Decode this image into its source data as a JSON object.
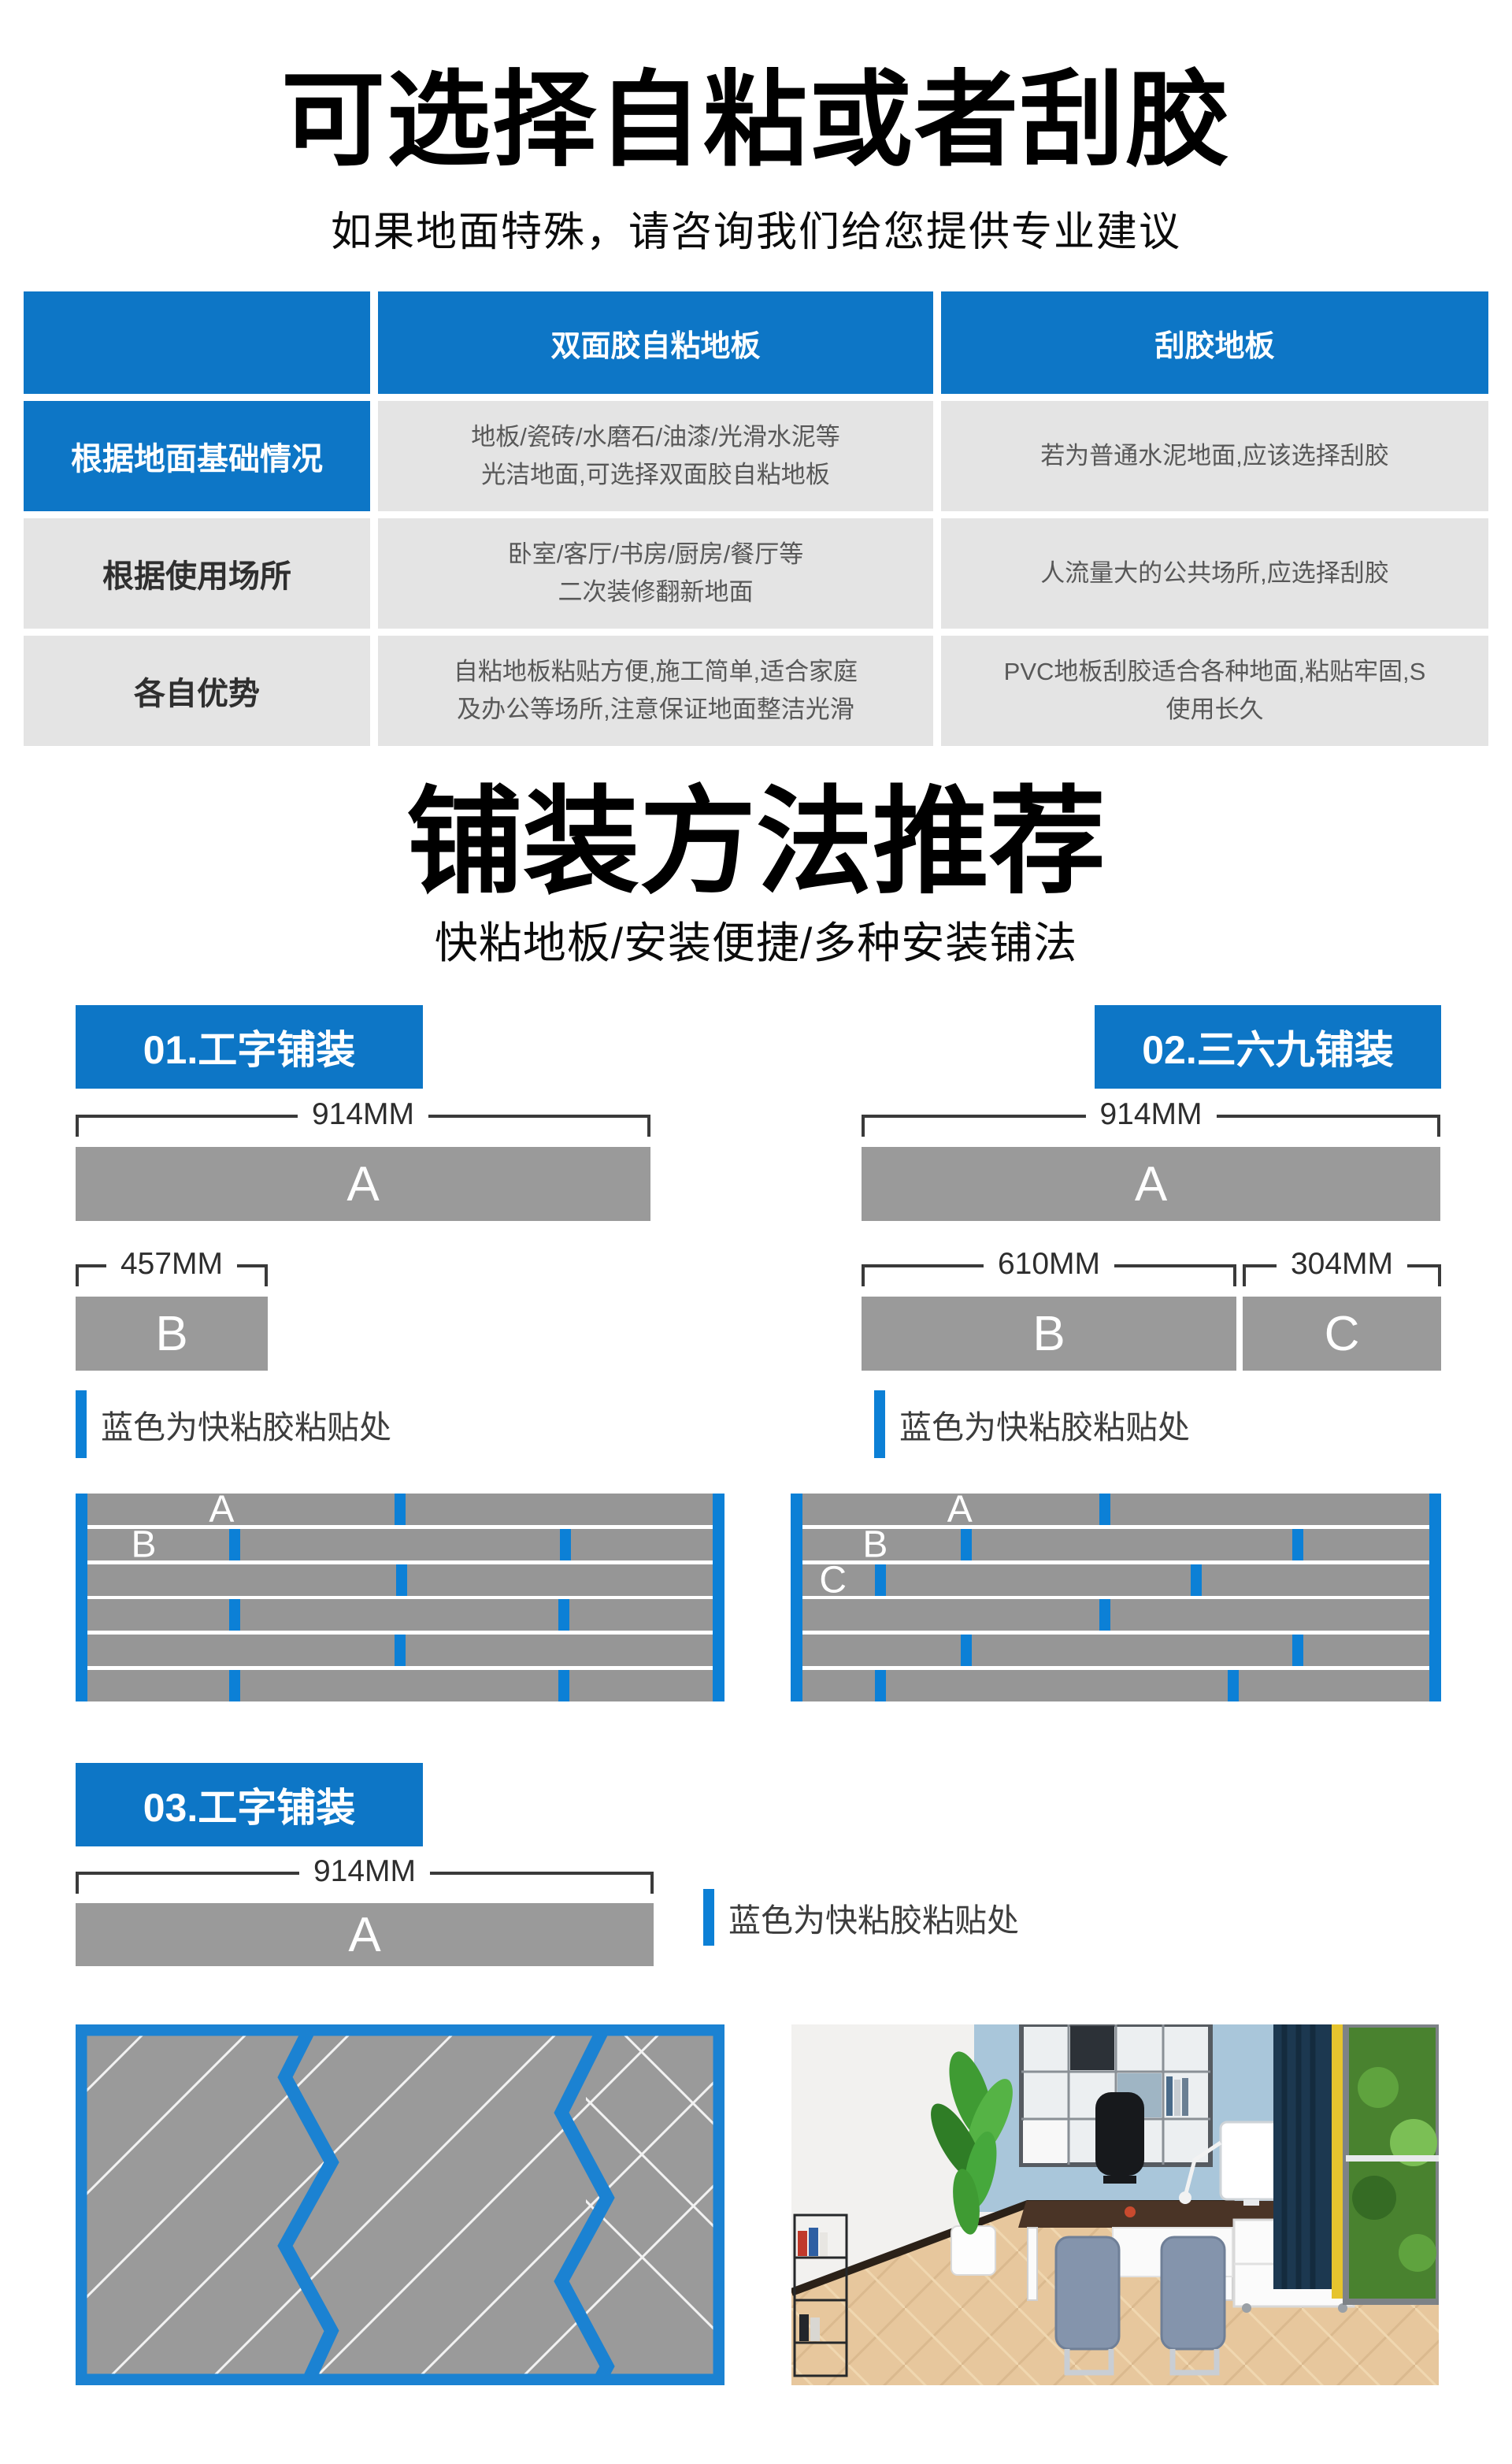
{
  "header": {
    "title": "可选择自粘或者刮胶",
    "subtitle": "如果地面特殊，请咨询我们给您提供专业建议"
  },
  "comparison_table": {
    "col_headers": [
      "双面胶自粘地板",
      "刮胶地板"
    ],
    "rows": [
      {
        "label": "根据地面基础情况",
        "self_adhesive": "地板/瓷砖/水磨石/油漆/光滑水泥等\n光洁地面,可选择双面胶自粘地板",
        "glue": "若为普通水泥地面,应该选择刮胶"
      },
      {
        "label": "根据使用场所",
        "self_adhesive": "卧室/客厅/书房/厨房/餐厅等\n二次装修翻新地面",
        "glue": "人流量大的公共场所,应选择刮胶"
      },
      {
        "label": "各自优势",
        "self_adhesive": "自粘地板粘贴方便,施工简单,适合家庭\n及办公等场所,注意保证地面整洁光滑",
        "glue": "PVC地板刮胶适合各种地面,粘贴牢固,S\n使用长久"
      }
    ]
  },
  "methods": {
    "title": "铺装方法推荐",
    "subtitle": "快粘地板/安装便捷/多种安装铺法",
    "legend_text": "蓝色为快粘胶粘贴处",
    "badges": [
      {
        "label": "01.工字铺装"
      },
      {
        "label": "02.三六九铺装"
      },
      {
        "label": "03.工字铺装"
      }
    ]
  },
  "dims": {
    "a1": {
      "label": "914MM",
      "bar": "A"
    },
    "b1": {
      "label": "457MM",
      "bar": "B"
    },
    "a2": {
      "label": "914MM",
      "bar": "A"
    },
    "b2": {
      "label": "610MM",
      "bar": "B"
    },
    "c2": {
      "label": "304MM",
      "bar": "C"
    },
    "a3": {
      "label": "914MM",
      "bar": "A"
    }
  },
  "plank_diagrams": [
    {
      "name": "i-pattern-layout",
      "rows": [
        {
          "label": "A",
          "label_x": 0.225,
          "seams": [
            0.5
          ]
        },
        {
          "label": "B",
          "label_x": 0.105,
          "seams": [
            0.245,
            0.755
          ]
        },
        {
          "seams": [
            0.502
          ]
        },
        {
          "seams": [
            0.245,
            0.752
          ]
        },
        {
          "seams": [
            0.5
          ]
        },
        {
          "seams": [
            0.245,
            0.752
          ]
        }
      ]
    },
    {
      "name": "369-pattern-layout",
      "rows": [
        {
          "label": "A",
          "label_x": 0.26,
          "seams": [
            0.483
          ]
        },
        {
          "label": "B",
          "label_x": 0.13,
          "seams": [
            0.27,
            0.78
          ]
        },
        {
          "label": "C",
          "label_x": 0.065,
          "seams": [
            0.138,
            0.623
          ]
        },
        {
          "seams": [
            0.483
          ]
        },
        {
          "seams": [
            0.27,
            0.78
          ]
        },
        {
          "seams": [
            0.138,
            0.68
          ]
        }
      ]
    }
  ],
  "colors": {
    "brand_blue": "#0d76c6",
    "accent_blue": "#0c80d6",
    "bar_gray": "#9a9a9a",
    "cell_gray": "#e4e4e4",
    "plank_gray": "#969696"
  }
}
